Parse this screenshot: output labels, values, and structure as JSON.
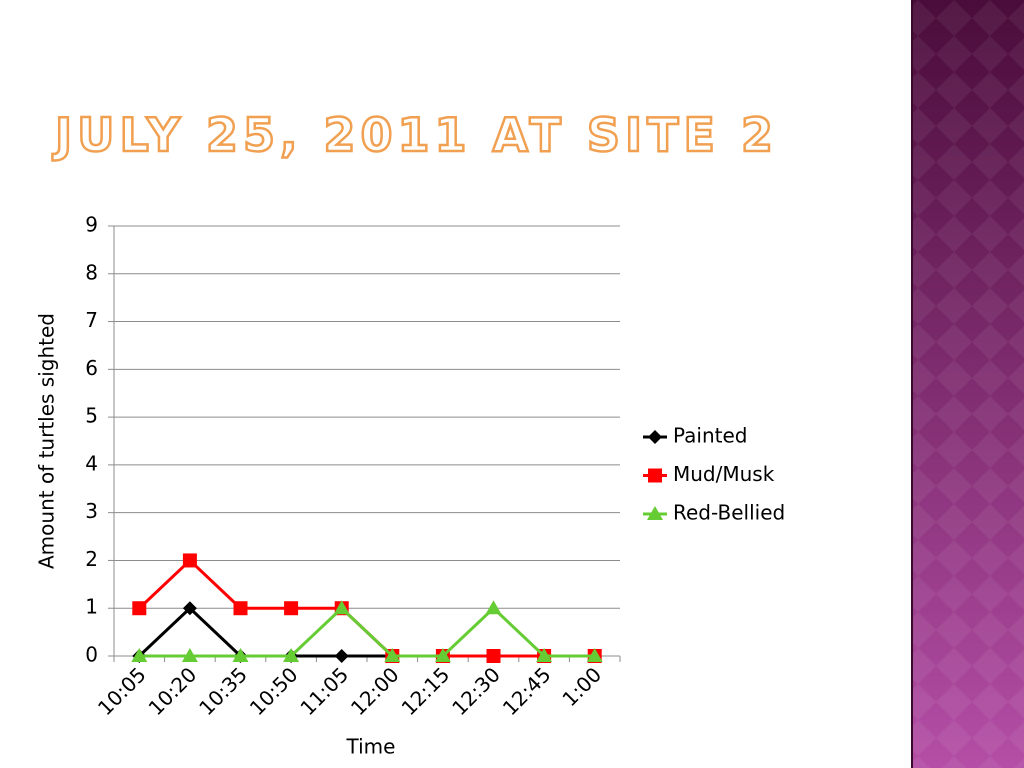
{
  "chart_data": {
    "type": "line",
    "title": "JULY 25, 2011 AT SITE 2",
    "x_label": "Time",
    "y_label": "Amount of turtles sighted",
    "categories": [
      "10:05",
      "10:20",
      "10:35",
      "10:50",
      "11:05",
      "12:00",
      "12:15",
      "12:30",
      "12:45",
      "1:00"
    ],
    "series": [
      {
        "name": "Painted",
        "color": "#000000",
        "marker": "diamond",
        "values": [
          0,
          1,
          0,
          0,
          0,
          0,
          0,
          0,
          0,
          0
        ]
      },
      {
        "name": "Mud/Musk",
        "color": "#ff0000",
        "marker": "square",
        "values": [
          1,
          2,
          1,
          1,
          1,
          0,
          0,
          0,
          0,
          0
        ]
      },
      {
        "name": "Red-Bellied",
        "color": "#66cc33",
        "marker": "triangle",
        "values": [
          0,
          0,
          0,
          0,
          1,
          0,
          0,
          1,
          0,
          0
        ]
      }
    ],
    "ylim": [
      0,
      9
    ],
    "yticks": [
      0,
      1,
      2,
      3,
      4,
      5,
      6,
      7,
      8,
      9
    ],
    "grid": true,
    "legend": "right"
  }
}
